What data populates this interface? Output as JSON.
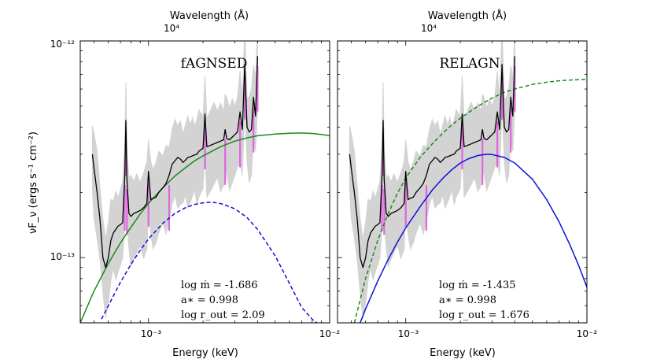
{
  "figure": {
    "ylabel": "νF_ν  (ergs s⁻¹ cm⁻²)",
    "top_axis_label": "Wavelength  (Å)",
    "top_tick_label": "10⁴",
    "ytick_top": "10⁻¹²",
    "ytick_mid": "10⁻¹³",
    "xtick_1": "10⁻³",
    "xtick_2": "10⁻²",
    "xlabel": "Energy  (keV)"
  },
  "chart_data": [
    {
      "type": "line",
      "title": "fAGNSED",
      "xlabel": "Energy  (keV)",
      "ylabel": "νF_ν  (ergs s⁻¹ cm⁻²)",
      "xscale": "log",
      "yscale": "log",
      "xlim": [
        0.00042,
        0.01
      ],
      "ylim": [
        5e-14,
        1e-12
      ],
      "legend": "none",
      "colors": {
        "data": "#000000",
        "data_unc": "#d3d3d3",
        "lines": "#dd66dd",
        "total": "#1a8a1a",
        "disc": "#1010dd"
      },
      "annotations": {
        "line1": "log ṁ = -1.686",
        "line2": "a∗ = 0.998",
        "line3": "log r_out = 2.09"
      },
      "series": [
        {
          "name": "",
          "style": "solid-black",
          "x": [
            0.00049,
            0.0005,
            0.00052,
            0.00054,
            0.00056,
            0.00058,
            0.0006,
            0.00062,
            0.00064,
            0.00066,
            0.00068,
            0.0007,
            0.00072,
            0.00074,
            0.00075,
            0.00076,
            0.00078,
            0.0008,
            0.00083,
            0.00086,
            0.0009,
            0.00094,
            0.00098,
            0.001,
            0.00103,
            0.00106,
            0.0011,
            0.00114,
            0.0012,
            0.00125,
            0.0013,
            0.00135,
            0.0014,
            0.00145,
            0.0015,
            0.00155,
            0.0016,
            0.00165,
            0.0017,
            0.00175,
            0.0018,
            0.00185,
            0.0019,
            0.002,
            0.00205,
            0.0021,
            0.0022,
            0.0023,
            0.0024,
            0.0025,
            0.0026,
            0.00265,
            0.0027,
            0.0028,
            0.0029,
            0.003,
            0.0031,
            0.0032,
            0.0033,
            0.0034,
            0.0035,
            0.0036,
            0.0037,
            0.0038,
            0.0039,
            0.004
          ],
          "y": [
            3e-13,
            2.6e-13,
            2e-13,
            1.5e-13,
            1e-13,
            9e-14,
            1e-13,
            1.2e-13,
            1.3e-13,
            1.35e-13,
            1.4e-13,
            1.42e-13,
            1.45e-13,
            2.4e-13,
            4.3e-13,
            2.3e-13,
            1.6e-13,
            1.55e-13,
            1.6e-13,
            1.62e-13,
            1.65e-13,
            1.7e-13,
            1.78e-13,
            2.5e-13,
            1.85e-13,
            1.88e-13,
            1.9e-13,
            2e-13,
            2.1e-13,
            2.2e-13,
            2.4e-13,
            2.7e-13,
            2.8e-13,
            2.9e-13,
            2.85e-13,
            2.75e-13,
            2.82e-13,
            2.9e-13,
            2.92e-13,
            2.95e-13,
            2.98e-13,
            3e-13,
            3.1e-13,
            3.2e-13,
            4.6e-13,
            3.25e-13,
            3.3e-13,
            3.35e-13,
            3.4e-13,
            3.45e-13,
            3.5e-13,
            3.9e-13,
            3.55e-13,
            3.5e-13,
            3.6e-13,
            3.7e-13,
            3.8e-13,
            4.7e-13,
            3.9e-13,
            7.8e-13,
            4e-13,
            3.8e-13,
            3.9e-13,
            5.5e-13,
            4.5e-13,
            8.5e-13
          ]
        },
        {
          "name": "",
          "style": "solid-green",
          "x": [
            0.00042,
            0.0005,
            0.0006,
            0.0007,
            0.0008,
            0.0009,
            0.001,
            0.0012,
            0.0014,
            0.0016,
            0.0018,
            0.002,
            0.0025,
            0.003,
            0.0035,
            0.004,
            0.005,
            0.006,
            0.007,
            0.008,
            0.009,
            0.01
          ],
          "y": [
            5e-14,
            7e-14,
            9.4e-14,
            1.17e-13,
            1.38e-13,
            1.59e-13,
            1.78e-13,
            2.1e-13,
            2.38e-13,
            2.6e-13,
            2.8e-13,
            2.95e-13,
            3.25e-13,
            3.45e-13,
            3.57e-13,
            3.65e-13,
            3.72e-13,
            3.75e-13,
            3.76e-13,
            3.74e-13,
            3.7e-13,
            3.65e-13
          ]
        },
        {
          "name": "",
          "style": "dashed-blue",
          "x": [
            0.00055,
            0.0006,
            0.0007,
            0.0008,
            0.0009,
            0.001,
            0.0012,
            0.0014,
            0.0016,
            0.0018,
            0.002,
            0.0022,
            0.0024,
            0.0026,
            0.003,
            0.0035,
            0.004,
            0.005,
            0.006,
            0.007,
            0.008,
            0.0085
          ],
          "y": [
            5.2e-14,
            6e-14,
            7.7e-14,
            9.3e-14,
            1.08e-13,
            1.22e-13,
            1.44e-13,
            1.6e-13,
            1.7e-13,
            1.76e-13,
            1.79e-13,
            1.8e-13,
            1.79e-13,
            1.76e-13,
            1.68e-13,
            1.53e-13,
            1.35e-13,
            1.02e-13,
            7.6e-14,
            5.9e-14,
            5.2e-14,
            5e-14
          ]
        }
      ]
    },
    {
      "type": "line",
      "title": "RELAGN",
      "xlabel": "Energy  (keV)",
      "ylabel": "",
      "xscale": "log",
      "yscale": "log",
      "xlim": [
        0.00042,
        0.01
      ],
      "ylim": [
        5e-14,
        1e-12
      ],
      "legend": "none",
      "colors": {
        "data": "#000000",
        "data_unc": "#d3d3d3",
        "lines": "#dd66dd",
        "total": "#1a8a1a",
        "disc": "#1010dd"
      },
      "annotations": {
        "line1": "log ṁ = -1.435",
        "line2": "a∗ = 0.998",
        "line3": "log r_out = 1.676"
      },
      "series": [
        {
          "name": "",
          "style": "solid-black",
          "x": [
            0.00049,
            0.0005,
            0.00052,
            0.00054,
            0.00056,
            0.00058,
            0.0006,
            0.00062,
            0.00064,
            0.00066,
            0.00068,
            0.0007,
            0.00072,
            0.00074,
            0.00075,
            0.00076,
            0.00078,
            0.0008,
            0.00083,
            0.00086,
            0.0009,
            0.00094,
            0.00098,
            0.001,
            0.00103,
            0.00106,
            0.0011,
            0.00114,
            0.0012,
            0.00125,
            0.0013,
            0.00135,
            0.0014,
            0.00145,
            0.0015,
            0.00155,
            0.0016,
            0.00165,
            0.0017,
            0.00175,
            0.0018,
            0.00185,
            0.0019,
            0.002,
            0.00205,
            0.0021,
            0.0022,
            0.0023,
            0.0024,
            0.0025,
            0.0026,
            0.00265,
            0.0027,
            0.0028,
            0.0029,
            0.003,
            0.0031,
            0.0032,
            0.0033,
            0.0034,
            0.0035,
            0.0036,
            0.0037,
            0.0038,
            0.0039,
            0.004
          ],
          "y": [
            3e-13,
            2.6e-13,
            2e-13,
            1.5e-13,
            1e-13,
            9e-14,
            1e-13,
            1.2e-13,
            1.3e-13,
            1.35e-13,
            1.4e-13,
            1.42e-13,
            1.45e-13,
            2.4e-13,
            4.3e-13,
            2.3e-13,
            1.6e-13,
            1.55e-13,
            1.6e-13,
            1.62e-13,
            1.65e-13,
            1.7e-13,
            1.78e-13,
            2.5e-13,
            1.85e-13,
            1.88e-13,
            1.9e-13,
            2e-13,
            2.1e-13,
            2.2e-13,
            2.4e-13,
            2.7e-13,
            2.8e-13,
            2.9e-13,
            2.85e-13,
            2.75e-13,
            2.82e-13,
            2.9e-13,
            2.92e-13,
            2.95e-13,
            2.98e-13,
            3e-13,
            3.1e-13,
            3.2e-13,
            4.6e-13,
            3.25e-13,
            3.3e-13,
            3.35e-13,
            3.4e-13,
            3.45e-13,
            3.5e-13,
            3.9e-13,
            3.55e-13,
            3.5e-13,
            3.6e-13,
            3.7e-13,
            3.8e-13,
            4.7e-13,
            3.9e-13,
            7.8e-13,
            4e-13,
            3.8e-13,
            3.9e-13,
            5.5e-13,
            4.5e-13,
            8.5e-13
          ]
        },
        {
          "name": "",
          "style": "dashed-green",
          "x": [
            0.00052,
            0.0006,
            0.0007,
            0.0008,
            0.0009,
            0.001,
            0.0012,
            0.0014,
            0.0016,
            0.0018,
            0.002,
            0.0025,
            0.003,
            0.0035,
            0.004,
            0.005,
            0.006,
            0.007,
            0.008,
            0.009,
            0.01
          ],
          "y": [
            5e-14,
            8e-14,
            1.2e-13,
            1.6e-13,
            1.98e-13,
            2.33e-13,
            2.9e-13,
            3.35e-13,
            3.75e-13,
            4.1e-13,
            4.4e-13,
            5e-13,
            5.45e-13,
            5.8e-13,
            6e-13,
            6.3e-13,
            6.45e-13,
            6.55e-13,
            6.6e-13,
            6.63e-13,
            6.65e-13
          ]
        },
        {
          "name": "",
          "style": "solid-blue",
          "x": [
            0.00056,
            0.0006,
            0.0007,
            0.0008,
            0.0009,
            0.001,
            0.0012,
            0.0014,
            0.0016,
            0.0018,
            0.002,
            0.0022,
            0.0025,
            0.0028,
            0.003,
            0.0035,
            0.004,
            0.005,
            0.006,
            0.007,
            0.008,
            0.009,
            0.01
          ],
          "y": [
            5e-14,
            5.8e-14,
            7.8e-14,
            9.8e-14,
            1.18e-13,
            1.37e-13,
            1.72e-13,
            2.05e-13,
            2.32e-13,
            2.55e-13,
            2.73e-13,
            2.85e-13,
            2.96e-13,
            3e-13,
            2.99e-13,
            2.9e-13,
            2.73e-13,
            2.3e-13,
            1.85e-13,
            1.47e-13,
            1.16e-13,
            9.2e-14,
            7.3e-14
          ]
        }
      ]
    }
  ]
}
